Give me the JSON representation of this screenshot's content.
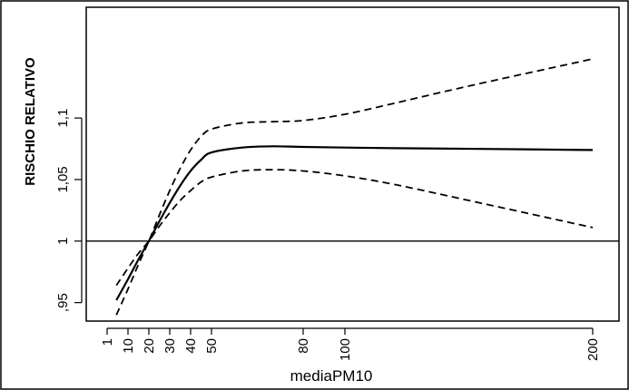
{
  "chart_data": {
    "type": "line",
    "title": "",
    "xlabel": "mediaPM10",
    "ylabel": "RISCHIO RELATIVO",
    "x_ticks": [
      1,
      10,
      20,
      30,
      40,
      50,
      80,
      100,
      200
    ],
    "x_tick_labels": [
      "1",
      "10",
      "20",
      "30",
      "40",
      "50",
      "80",
      "100",
      "200"
    ],
    "y_ticks": [
      0.95,
      1,
      1.05,
      1.1
    ],
    "y_tick_labels": [
      ",95",
      "1",
      "1,05",
      "1,1"
    ],
    "ylim": [
      0.935,
      1.19
    ],
    "reference_line": 1,
    "grid": false,
    "series": [
      {
        "style": "solid",
        "x": [
          5,
          10,
          15,
          20,
          25,
          30,
          35,
          40,
          45,
          50,
          60,
          70,
          80,
          100,
          120,
          150,
          200
        ],
        "y": [
          0.952,
          0.969,
          0.985,
          1.0,
          1.016,
          1.031,
          1.045,
          1.057,
          1.066,
          1.072,
          1.076,
          1.077,
          1.0765,
          1.076,
          1.0755,
          1.075,
          1.074
        ]
      },
      {
        "style": "dashed",
        "x": [
          5,
          10,
          15,
          20,
          25,
          30,
          35,
          40,
          45,
          50,
          60,
          70,
          80,
          100,
          120,
          150,
          200
        ],
        "y": [
          0.94,
          0.961,
          0.981,
          1.0,
          1.021,
          1.041,
          1.059,
          1.074,
          1.085,
          1.091,
          1.096,
          1.097,
          1.098,
          1.103,
          1.112,
          1.126,
          1.148
        ]
      },
      {
        "style": "dashed",
        "x": [
          5,
          10,
          15,
          20,
          25,
          30,
          35,
          40,
          45,
          50,
          60,
          70,
          80,
          100,
          120,
          150,
          200
        ],
        "y": [
          0.964,
          0.978,
          0.99,
          1.0,
          1.012,
          1.023,
          1.033,
          1.041,
          1.048,
          1.052,
          1.057,
          1.058,
          1.057,
          1.053,
          1.046,
          1.033,
          1.011
        ]
      }
    ]
  }
}
